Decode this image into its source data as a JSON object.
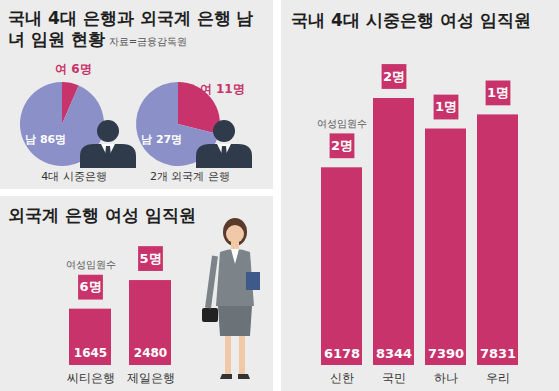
{
  "chart_data": [
    {
      "type": "pie",
      "title": "국내 4대 은행과 외국계 은행 남녀 임원 현황",
      "source": "자료=금융감독원",
      "caption": "4대 시중은행",
      "categories": [
        "여",
        "남"
      ],
      "values": [
        6,
        86
      ],
      "value_labels": [
        "6명",
        "86명"
      ],
      "colors": [
        "#c8336b",
        "#8b90c9"
      ],
      "data_labels": true
    },
    {
      "type": "pie",
      "caption": "2개 외국계 은행",
      "categories": [
        "여",
        "남"
      ],
      "values": [
        11,
        27
      ],
      "value_labels": [
        "11명",
        "27명"
      ],
      "colors": [
        "#c8336b",
        "#8b90c9"
      ],
      "data_labels": true
    },
    {
      "type": "bar",
      "title": "외국계 은행 여성 임직원",
      "categories": [
        "씨티은행",
        "제일은행"
      ],
      "values": [
        1645,
        2480
      ],
      "color": "#c8336b",
      "ylim": [
        0,
        4000
      ],
      "data_labels": true,
      "tick_labels": "x",
      "executives": {
        "name": "여성임원수",
        "values": [
          6,
          5
        ],
        "value_labels": [
          "6명",
          "5명"
        ]
      }
    },
    {
      "type": "bar",
      "title": "국내 4대 시중은행 여성 임직원",
      "categories": [
        "신한",
        "국민",
        "하나",
        "우리"
      ],
      "values": [
        6178,
        8344,
        7390,
        7831
      ],
      "color": "#c8336b",
      "ylim": [
        0,
        10000
      ],
      "data_labels": true,
      "tick_labels": "x",
      "executives": {
        "name": "여성임원수",
        "values": [
          2,
          2,
          1,
          1
        ],
        "value_labels": [
          "2명",
          "2명",
          "1명",
          "1명"
        ]
      }
    }
  ]
}
